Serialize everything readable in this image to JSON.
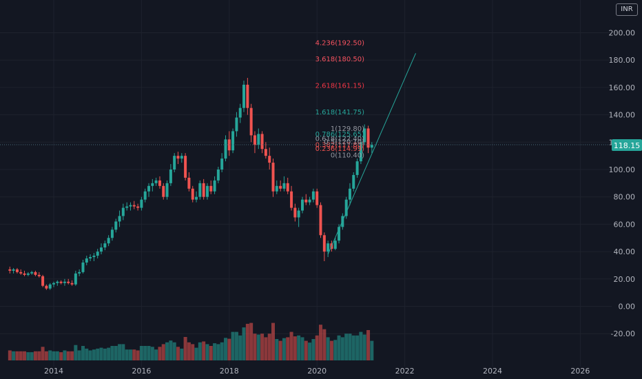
{
  "currency": "INR",
  "chart_data": {
    "type": "candlestick",
    "x_ticks": [
      "2014",
      "2016",
      "2018",
      "2020",
      "2022",
      "2024",
      "2026"
    ],
    "y_ticks": [
      "200.00",
      "180.00",
      "160.00",
      "140.00",
      "120.00",
      "100.00",
      "80.00",
      "60.00",
      "40.00",
      "20.00",
      "0.00",
      "-20.00"
    ],
    "last_price": "118.15",
    "colors": {
      "up": "#26a69a",
      "down": "#ef5350",
      "grid": "#1e222d",
      "trend": "#26a69a",
      "fib_low": "#ef5350",
      "fib_high": "#26a69a",
      "fib_ext": "#f23645"
    },
    "candles_monthly_ohlc": [
      [
        2013.0,
        27,
        29,
        24,
        26
      ],
      [
        2013.083,
        26,
        28,
        24,
        27
      ],
      [
        2013.167,
        27,
        28,
        24,
        25
      ],
      [
        2013.25,
        25,
        27,
        23,
        24
      ],
      [
        2013.333,
        24,
        26,
        22,
        23
      ],
      [
        2013.417,
        23,
        25,
        22,
        24
      ],
      [
        2013.5,
        24,
        26,
        23,
        25
      ],
      [
        2013.583,
        25,
        26,
        22,
        23
      ],
      [
        2013.667,
        23,
        25,
        21,
        22
      ],
      [
        2013.75,
        22,
        23,
        14,
        15
      ],
      [
        2013.833,
        15,
        16,
        12,
        13
      ],
      [
        2013.917,
        13,
        17,
        12,
        16
      ],
      [
        2014.0,
        16,
        18,
        14,
        17
      ],
      [
        2014.083,
        17,
        19,
        15,
        18
      ],
      [
        2014.167,
        18,
        19,
        16,
        17
      ],
      [
        2014.25,
        17,
        20,
        15,
        18
      ],
      [
        2014.333,
        18,
        20,
        16,
        17
      ],
      [
        2014.417,
        17,
        19,
        15,
        16
      ],
      [
        2014.5,
        16,
        26,
        15,
        24
      ],
      [
        2014.583,
        24,
        27,
        22,
        25
      ],
      [
        2014.667,
        25,
        34,
        24,
        32
      ],
      [
        2014.75,
        32,
        37,
        30,
        35
      ],
      [
        2014.833,
        35,
        38,
        33,
        36
      ],
      [
        2014.917,
        36,
        39,
        33,
        37
      ],
      [
        2015.0,
        37,
        42,
        35,
        40
      ],
      [
        2015.083,
        40,
        46,
        38,
        43
      ],
      [
        2015.167,
        43,
        48,
        41,
        46
      ],
      [
        2015.25,
        46,
        52,
        44,
        50
      ],
      [
        2015.333,
        50,
        58,
        48,
        56
      ],
      [
        2015.417,
        56,
        64,
        54,
        62
      ],
      [
        2015.5,
        62,
        70,
        58,
        66
      ],
      [
        2015.583,
        66,
        75,
        63,
        72
      ],
      [
        2015.667,
        72,
        76,
        70,
        73
      ],
      [
        2015.75,
        73,
        76,
        70,
        74
      ],
      [
        2015.833,
        74,
        77,
        71,
        73
      ],
      [
        2015.917,
        73,
        75,
        70,
        72
      ],
      [
        2016.0,
        72,
        80,
        70,
        78
      ],
      [
        2016.083,
        78,
        86,
        76,
        84
      ],
      [
        2016.167,
        84,
        90,
        80,
        88
      ],
      [
        2016.25,
        88,
        93,
        84,
        90
      ],
      [
        2016.333,
        90,
        94,
        88,
        92
      ],
      [
        2016.417,
        92,
        95,
        86,
        88
      ],
      [
        2016.5,
        88,
        90,
        78,
        80
      ],
      [
        2016.583,
        80,
        92,
        78,
        90
      ],
      [
        2016.667,
        90,
        104,
        88,
        100
      ],
      [
        2016.75,
        100,
        112,
        98,
        110
      ],
      [
        2016.833,
        110,
        113,
        104,
        108
      ],
      [
        2016.917,
        108,
        112,
        105,
        110
      ],
      [
        2017.0,
        110,
        112,
        92,
        94
      ],
      [
        2017.083,
        94,
        98,
        84,
        86
      ],
      [
        2017.167,
        86,
        88,
        76,
        78
      ],
      [
        2017.25,
        78,
        84,
        76,
        80
      ],
      [
        2017.333,
        80,
        92,
        78,
        90
      ],
      [
        2017.417,
        90,
        93,
        78,
        80
      ],
      [
        2017.5,
        80,
        90,
        78,
        88
      ],
      [
        2017.583,
        88,
        92,
        82,
        84
      ],
      [
        2017.667,
        84,
        95,
        82,
        92
      ],
      [
        2017.75,
        92,
        102,
        90,
        100
      ],
      [
        2017.833,
        100,
        112,
        98,
        108
      ],
      [
        2017.917,
        108,
        125,
        106,
        122
      ],
      [
        2018.0,
        122,
        128,
        110,
        114
      ],
      [
        2018.083,
        114,
        130,
        112,
        128
      ],
      [
        2018.167,
        128,
        142,
        124,
        138
      ],
      [
        2018.25,
        138,
        148,
        134,
        145
      ],
      [
        2018.333,
        145,
        165,
        142,
        162
      ],
      [
        2018.417,
        162,
        167,
        140,
        145
      ],
      [
        2018.5,
        145,
        148,
        120,
        125
      ],
      [
        2018.583,
        125,
        128,
        112,
        118
      ],
      [
        2018.667,
        118,
        130,
        115,
        126
      ],
      [
        2018.75,
        126,
        128,
        112,
        115
      ],
      [
        2018.833,
        115,
        120,
        108,
        110
      ],
      [
        2018.917,
        110,
        116,
        100,
        105
      ],
      [
        2019.0,
        105,
        108,
        80,
        84
      ],
      [
        2019.083,
        84,
        92,
        82,
        88
      ],
      [
        2019.167,
        88,
        92,
        84,
        86
      ],
      [
        2019.25,
        86,
        95,
        84,
        90
      ],
      [
        2019.333,
        90,
        94,
        82,
        84
      ],
      [
        2019.417,
        84,
        88,
        70,
        72
      ],
      [
        2019.5,
        72,
        75,
        62,
        65
      ],
      [
        2019.583,
        65,
        72,
        58,
        70
      ],
      [
        2019.667,
        70,
        80,
        68,
        78
      ],
      [
        2019.75,
        78,
        82,
        74,
        76
      ],
      [
        2019.833,
        76,
        80,
        74,
        78
      ],
      [
        2019.917,
        78,
        86,
        76,
        84
      ],
      [
        2020.0,
        84,
        86,
        72,
        74
      ],
      [
        2020.083,
        74,
        76,
        50,
        52
      ],
      [
        2020.167,
        52,
        54,
        33,
        40
      ],
      [
        2020.25,
        40,
        48,
        36,
        46
      ],
      [
        2020.333,
        46,
        48,
        40,
        42
      ],
      [
        2020.417,
        42,
        50,
        41,
        48
      ],
      [
        2020.5,
        48,
        60,
        46,
        58
      ],
      [
        2020.583,
        58,
        68,
        56,
        66
      ],
      [
        2020.667,
        66,
        80,
        64,
        78
      ],
      [
        2020.75,
        78,
        90,
        74,
        86
      ],
      [
        2020.833,
        86,
        98,
        84,
        96
      ],
      [
        2020.917,
        96,
        108,
        94,
        106
      ],
      [
        2021.0,
        106,
        122,
        104,
        120
      ],
      [
        2021.083,
        120,
        133,
        118,
        130
      ],
      [
        2021.167,
        130,
        132,
        112,
        116
      ],
      [
        2021.25,
        116,
        120,
        112,
        118
      ]
    ],
    "fib_levels": [
      {
        "ratio": "0",
        "price": "110.40",
        "kind": "base"
      },
      {
        "ratio": "0.236",
        "price": "114.99",
        "kind": "low"
      },
      {
        "ratio": "0.382",
        "price": "117.80",
        "kind": "low"
      },
      {
        "ratio": "0.5",
        "price": "120.10",
        "kind": "mid"
      },
      {
        "ratio": "0.618",
        "price": "122.40",
        "kind": "mid"
      },
      {
        "ratio": "0.786",
        "price": "125.65",
        "kind": "high"
      },
      {
        "ratio": "1",
        "price": "129.80",
        "kind": "base"
      },
      {
        "ratio": "1.618",
        "price": "141.75",
        "kind": "high"
      },
      {
        "ratio": "2.618",
        "price": "161.15",
        "kind": "ext"
      },
      {
        "ratio": "3.618",
        "price": "180.50",
        "kind": "ext2"
      },
      {
        "ratio": "4.236",
        "price": "192.50",
        "kind": "ext2"
      }
    ],
    "trend_line": {
      "from": [
        2020.25,
        38
      ],
      "to": [
        2022.25,
        185
      ]
    }
  }
}
